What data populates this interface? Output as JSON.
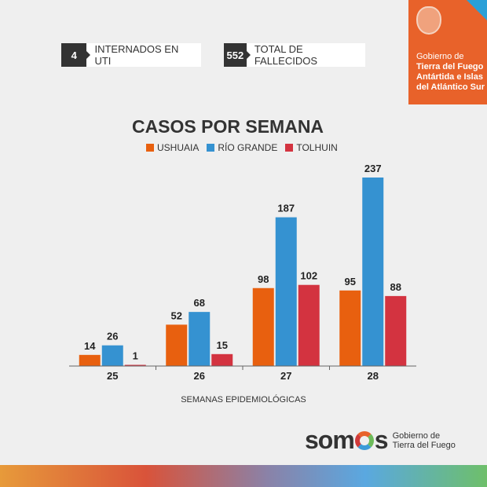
{
  "stats": [
    {
      "value": "4",
      "label": "INTERNADOS EN UTI"
    },
    {
      "value": "552",
      "label": "TOTAL DE FALLECIDOS"
    }
  ],
  "gov_badge": {
    "line1": "Gobierno de",
    "line2": "Tierra del Fuego",
    "line3": "Antártida e Islas",
    "line4": "del Atlántico Sur",
    "bg": "#e8622a"
  },
  "chart_data": {
    "type": "bar",
    "title": "CASOS POR SEMANA",
    "xlabel": "SEMANAS EPIDEMIOLÓGICAS",
    "ylabel": "",
    "categories": [
      "25",
      "26",
      "27",
      "28"
    ],
    "series": [
      {
        "name": "USHUAIA",
        "color": "#e8600f",
        "values": [
          14,
          52,
          98,
          95
        ]
      },
      {
        "name": "RÍO GRANDE",
        "color": "#3592d1",
        "values": [
          26,
          68,
          187,
          237
        ]
      },
      {
        "name": "TOLHUIN",
        "color": "#d33340",
        "values": [
          1,
          15,
          102,
          88
        ]
      }
    ],
    "ylim": [
      0,
      237
    ],
    "grid": false,
    "legend": "top-center"
  },
  "footer": {
    "brand": "somos",
    "sub1": "Gobierno de",
    "sub2": "Tierra del Fuego"
  }
}
